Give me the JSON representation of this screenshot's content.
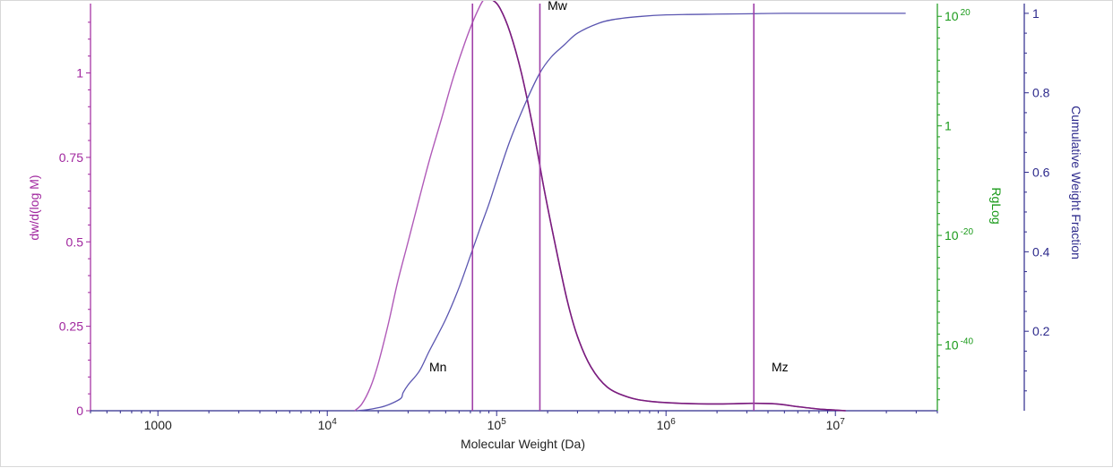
{
  "colors": {
    "left_axis": "#a0269e",
    "rg_axis": "#1a9a1a",
    "cum_axis": "#2d2a8c",
    "x_axis": "#2d2a8c",
    "dist_curve": "#b05ab8",
    "dist_curve_dark": "#7a1d7e",
    "cum_curve": "#5a55b0",
    "markers": "#a040a8"
  },
  "chart_data": {
    "type": "line",
    "x_scale": "log",
    "xlabel": "Molecular Weight (Da)",
    "xlim": [
      400,
      40000000
    ],
    "x_ticks": [
      {
        "value": 1000,
        "base": "1000",
        "exp": ""
      },
      {
        "value": 10000,
        "base": "10",
        "exp": "4"
      },
      {
        "value": 100000,
        "base": "10",
        "exp": "5"
      },
      {
        "value": 1000000,
        "base": "10",
        "exp": "6"
      },
      {
        "value": 10000000,
        "base": "10",
        "exp": "7"
      }
    ],
    "y_left": {
      "label": "dw/d(log M)",
      "lim": [
        0,
        1.2
      ],
      "ticks": [
        {
          "value": 0,
          "label": "0"
        },
        {
          "value": 0.25,
          "label": "0.25"
        },
        {
          "value": 0.5,
          "label": "0.5"
        },
        {
          "value": 0.75,
          "label": "0.75"
        },
        {
          "value": 1,
          "label": "1"
        }
      ]
    },
    "y_rg": {
      "label": "RgLog",
      "scale": "log",
      "lim_exp": [
        -52,
        22
      ],
      "ticks": [
        {
          "exp": 20,
          "base": "10",
          "sup": "20"
        },
        {
          "exp": 0,
          "base": "1",
          "sup": ""
        },
        {
          "exp": -20,
          "base": "10",
          "sup": "-20"
        },
        {
          "exp": -40,
          "base": "10",
          "sup": "-40"
        }
      ]
    },
    "y_cum": {
      "label": "Cumulative Weight Fraction",
      "lim": [
        0,
        1.02
      ],
      "ticks": [
        {
          "value": 0.2,
          "label": "0.2"
        },
        {
          "value": 0.4,
          "label": "0.4"
        },
        {
          "value": 0.6,
          "label": "0.6"
        },
        {
          "value": 0.8,
          "label": "0.8"
        },
        {
          "value": 1,
          "label": "1"
        }
      ]
    },
    "series": [
      {
        "name": "dw/d(log M)",
        "axis": "left",
        "points": [
          [
            14500,
            0
          ],
          [
            16000,
            0.02
          ],
          [
            18000,
            0.07
          ],
          [
            20000,
            0.14
          ],
          [
            23000,
            0.26
          ],
          [
            26000,
            0.38
          ],
          [
            30000,
            0.5
          ],
          [
            35000,
            0.63
          ],
          [
            40000,
            0.74
          ],
          [
            47000,
            0.86
          ],
          [
            55000,
            0.98
          ],
          [
            65000,
            1.09
          ],
          [
            75000,
            1.17
          ],
          [
            85000,
            1.22
          ],
          [
            95000,
            1.215
          ],
          [
            105000,
            1.19
          ],
          [
            120000,
            1.12
          ],
          [
            140000,
            1.0
          ],
          [
            165000,
            0.83
          ],
          [
            190000,
            0.66
          ],
          [
            220000,
            0.5
          ],
          [
            260000,
            0.33
          ],
          [
            300000,
            0.22
          ],
          [
            360000,
            0.13
          ],
          [
            450000,
            0.07
          ],
          [
            600000,
            0.04
          ],
          [
            800000,
            0.028
          ],
          [
            1200000,
            0.022
          ],
          [
            2000000,
            0.02
          ],
          [
            3300000,
            0.022
          ],
          [
            4500000,
            0.02
          ],
          [
            6000000,
            0.012
          ],
          [
            8000000,
            0.005
          ],
          [
            10000000,
            0.002
          ],
          [
            11500000,
            0
          ]
        ]
      },
      {
        "name": "Cumulative Weight Fraction",
        "axis": "cum",
        "points": [
          [
            15000,
            0
          ],
          [
            18000,
            0.004
          ],
          [
            22000,
            0.012
          ],
          [
            27000,
            0.03
          ],
          [
            28000,
            0.045
          ],
          [
            30000,
            0.065
          ],
          [
            35000,
            0.1
          ],
          [
            40000,
            0.15
          ],
          [
            50000,
            0.23
          ],
          [
            60000,
            0.31
          ],
          [
            70000,
            0.39
          ],
          [
            80000,
            0.46
          ],
          [
            90000,
            0.52
          ],
          [
            100000,
            0.58
          ],
          [
            120000,
            0.68
          ],
          [
            150000,
            0.78
          ],
          [
            180000,
            0.85
          ],
          [
            210000,
            0.89
          ],
          [
            250000,
            0.92
          ],
          [
            300000,
            0.95
          ],
          [
            400000,
            0.975
          ],
          [
            500000,
            0.985
          ],
          [
            700000,
            0.992
          ],
          [
            1000000,
            0.996
          ],
          [
            2000000,
            0.998
          ],
          [
            3300000,
            0.999
          ],
          [
            5000000,
            1.0
          ],
          [
            26000000,
            1.0
          ]
        ]
      }
    ],
    "markers": [
      {
        "name": "Mn",
        "x": 72000,
        "label_x": 40000,
        "label_y": 0.13
      },
      {
        "name": "Mw",
        "x": 180000,
        "label_x": 200000,
        "label_y": 1.2
      },
      {
        "name": "Mz",
        "x": 3300000,
        "label_x": 4200000,
        "label_y": 0.13
      }
    ]
  }
}
